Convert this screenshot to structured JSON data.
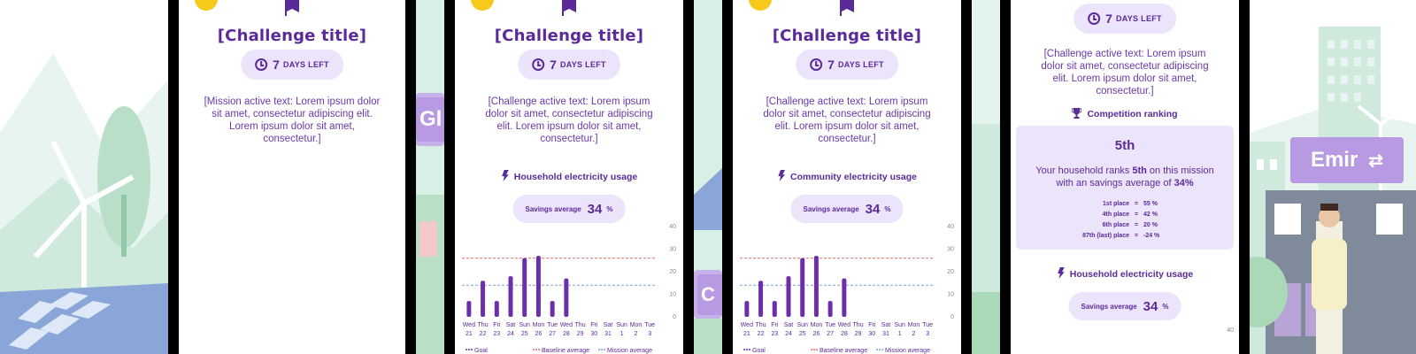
{
  "colors": {
    "accent": "#5b2a99",
    "pill_bg": "#ece4fa",
    "bar": "#6b2faa",
    "goal_line": "#e06a6a",
    "baseline_line": "#7aa3d6"
  },
  "background": {
    "left_icon": "wind-turbine-landscape",
    "right_icon": "city-landscape"
  },
  "side_labels": {
    "left_partial": "Gl",
    "middle_partial": "C"
  },
  "avatar_name_tag": {
    "label": "Emir",
    "icon": "swap-arrows-icon"
  },
  "screens": [
    {
      "title": "[Challenge title]",
      "days_left_value": "7",
      "days_left_label": "DAYS LEFT",
      "body_text": "[Mission active text: Lorem ipsum dolor sit amet, consectetur adipiscing elit. Lorem ipsum dolor sit amet, consectetur.]"
    },
    {
      "title": "[Challenge title]",
      "days_left_value": "7",
      "days_left_label": "DAYS LEFT",
      "body_text": "[Challenge active text: Lorem ipsum dolor sit amet, consectetur adipiscing elit. Lorem ipsum dolor sit amet, consectetur.]",
      "section_title": "Household electricity usage",
      "savings_label": "Savings average",
      "savings_value": "34",
      "savings_unit": "%"
    },
    {
      "title": "[Challenge title]",
      "days_left_value": "7",
      "days_left_label": "DAYS LEFT",
      "body_text": "[Challenge active text: Lorem ipsum dolor sit amet, consectetur adipiscing elit. Lorem ipsum dolor sit amet, consectetur.]",
      "section_title": "Community electricity usage",
      "savings_label": "Savings average",
      "savings_value": "34",
      "savings_unit": "%"
    },
    {
      "days_left_value": "7",
      "days_left_label": "DAYS LEFT",
      "body_text": "[Challenge active text: Lorem ipsum dolor sit amet, consectetur adipiscing elit. Lorem ipsum dolor sit amet, consectetur.]",
      "ranking_title": "Competition ranking",
      "rank_place": "5th",
      "rank_text_pre": "Your household ranks ",
      "rank_text_place": "5th",
      "rank_text_mid": " on this mission with an savings average of ",
      "rank_text_pct": "34%",
      "rank_list": [
        {
          "place": "1st place",
          "eq": "=",
          "value": "55 %"
        },
        {
          "place": "4th place",
          "eq": "=",
          "value": "42 %"
        },
        {
          "place": "6th place",
          "eq": "=",
          "value": "20 %"
        },
        {
          "place": "87th (last) place",
          "eq": "=",
          "value": "-24 %"
        }
      ],
      "section_title": "Household electricity usage",
      "savings_label": "Savings average",
      "savings_value": "34",
      "savings_unit": "%",
      "axis_top_label": "40"
    }
  ],
  "chart_data": [
    {
      "type": "bar",
      "categories": [
        "Wed 21",
        "Thu 22",
        "Fri 23",
        "Sat 24",
        "Sun 25",
        "Mon 26",
        "Tue 27",
        "Wed 28",
        "Thu 29",
        "Fri 30",
        "Sat 31",
        "Sun 1",
        "Mon 2",
        "Tue 3"
      ],
      "day_labels": [
        "Wed",
        "Thu",
        "Fri",
        "Sat",
        "Sun",
        "Mon",
        "Tue",
        "Wed",
        "Thu",
        "Fri",
        "Sat",
        "Sun",
        "Mon",
        "Tue"
      ],
      "date_labels": [
        "21",
        "22",
        "23",
        "24",
        "25",
        "26",
        "27",
        "28",
        "29",
        "30",
        "31",
        "1",
        "2",
        "3"
      ],
      "values": [
        7,
        16,
        7,
        18,
        26,
        27,
        7,
        17,
        null,
        null,
        null,
        null,
        null,
        null
      ],
      "yticks": [
        "0",
        "10",
        "20",
        "30",
        "40"
      ],
      "ylim": [
        0,
        40
      ],
      "goal_line": 26,
      "baseline_line": 14,
      "legend": [
        "Goal",
        "Baseline average",
        "Mission average"
      ]
    },
    {
      "type": "bar",
      "categories": [
        "Wed 21",
        "Thu 22",
        "Fri 23",
        "Sat 24",
        "Sun 25",
        "Mon 26",
        "Tue 27",
        "Wed 28",
        "Thu 29",
        "Fri 30",
        "Sat 31",
        "Sun 1",
        "Mon 2",
        "Tue 3"
      ],
      "day_labels": [
        "Wed",
        "Thu",
        "Fri",
        "Sat",
        "Sun",
        "Mon",
        "Tue",
        "Wed",
        "Thu",
        "Fri",
        "Sat",
        "Sun",
        "Mon",
        "Tue"
      ],
      "date_labels": [
        "21",
        "22",
        "23",
        "24",
        "25",
        "26",
        "27",
        "28",
        "29",
        "30",
        "31",
        "1",
        "2",
        "3"
      ],
      "values": [
        7,
        16,
        7,
        18,
        26,
        27,
        7,
        17,
        null,
        null,
        null,
        null,
        null,
        null
      ],
      "yticks": [
        "0",
        "10",
        "20",
        "30",
        "40"
      ],
      "ylim": [
        0,
        40
      ],
      "goal_line": 26,
      "baseline_line": 14,
      "legend": [
        "Goal",
        "Baseline average",
        "Mission average"
      ]
    }
  ]
}
